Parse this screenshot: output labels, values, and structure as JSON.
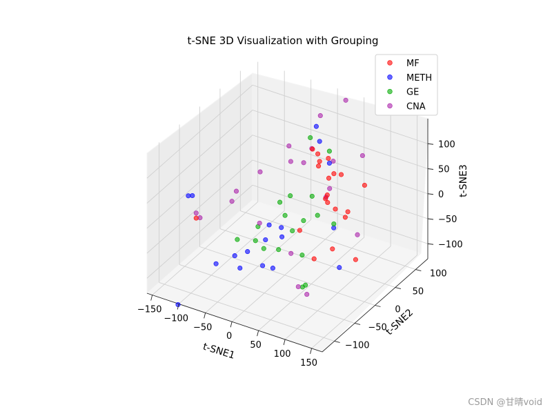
{
  "chart_data": {
    "type": "scatter",
    "projection": "3d",
    "title": "t-SNE 3D Visualization with Grouping",
    "xlabel": "t-SNE1",
    "ylabel": "t-SNE2",
    "zlabel": "t-SNE3",
    "xlim": [
      -160,
      170
    ],
    "ylim": [
      -130,
      130
    ],
    "zlim": [
      -130,
      150
    ],
    "x_ticks": [
      -150,
      -100,
      -50,
      0,
      50,
      100,
      150
    ],
    "y_ticks": [
      -100,
      -50,
      0,
      50,
      100
    ],
    "z_ticks": [
      -100,
      -50,
      0,
      50,
      100
    ],
    "grid": true,
    "legend_position": "top-right",
    "series": [
      {
        "name": "MF",
        "color": "#ff0000",
        "points": [
          [
            -34,
            126,
            10
          ],
          [
            -41,
            122,
            20
          ],
          [
            -5,
            114,
            20
          ],
          [
            -20,
            112,
            10
          ],
          [
            -22,
            112,
            0
          ],
          [
            7,
            112,
            -5
          ],
          [
            26,
            105,
            5
          ],
          [
            11,
            86,
            -35
          ],
          [
            50,
            90,
            -50
          ],
          [
            59,
            72,
            -45
          ],
          [
            44,
            60,
            -105
          ],
          [
            34,
            64,
            30
          ],
          [
            83,
            16,
            20
          ],
          [
            70,
            14,
            30
          ],
          [
            96,
            49,
            -100
          ],
          [
            69,
            -18,
            -60
          ],
          [
            -10,
            50,
            -80
          ],
          [
            -124,
            -56,
            -20
          ],
          [
            90,
            79,
            25
          ],
          [
            -4,
            110,
            -50
          ]
        ]
      },
      {
        "name": "METH",
        "color": "#0000ff",
        "points": [
          [
            -102,
            -94,
            60
          ],
          [
            -115,
            -87,
            50
          ],
          [
            -20,
            112,
            50
          ],
          [
            -40,
            130,
            60
          ],
          [
            0,
            110,
            15
          ],
          [
            -88,
            -54,
            -100
          ],
          [
            -75,
            -25,
            -100
          ],
          [
            -64,
            -8,
            -100
          ],
          [
            -32,
            35,
            -90
          ],
          [
            -50,
            18,
            -90
          ],
          [
            -37,
            10,
            -50
          ],
          [
            -24,
            23,
            -60
          ],
          [
            -100,
            -132,
            -130
          ],
          [
            -27,
            6,
            -130
          ],
          [
            -37,
            -6,
            -120
          ],
          [
            48,
            58,
            -60
          ],
          [
            86,
            22,
            -100
          ],
          [
            -72,
            -16,
            -130
          ]
        ]
      },
      {
        "name": "GE",
        "color": "#00aa00",
        "points": [
          [
            -23,
            93,
            70
          ],
          [
            -3,
            114,
            35
          ],
          [
            -30,
            40,
            -50
          ],
          [
            -30,
            53,
            -20
          ],
          [
            -42,
            43,
            -30
          ],
          [
            -15,
            87,
            -40
          ],
          [
            -58,
            -41,
            -50
          ],
          [
            -39,
            -21,
            -60
          ],
          [
            -42,
            -11,
            -40
          ],
          [
            -31,
            -11,
            -80
          ],
          [
            -17,
            7,
            -90
          ],
          [
            -4,
            24,
            -60
          ],
          [
            11,
            32,
            -40
          ],
          [
            22,
            52,
            -40
          ],
          [
            42,
            66,
            -60
          ],
          [
            16,
            22,
            -100
          ],
          [
            36,
            4,
            -140
          ],
          [
            35,
            -2,
            -140
          ]
        ]
      },
      {
        "name": "CNA",
        "color": "#aa22aa",
        "points": [
          [
            -20,
            114,
            100
          ],
          [
            14,
            132,
            130
          ],
          [
            -47,
            72,
            60
          ],
          [
            -72,
            -25,
            30
          ],
          [
            -78,
            -28,
            10
          ],
          [
            -124,
            -56,
            -10
          ],
          [
            -45,
            -3,
            -40
          ],
          [
            -54,
            10,
            50
          ],
          [
            -1,
            48,
            60
          ],
          [
            -4,
            72,
            70
          ],
          [
            37,
            71,
            60
          ],
          [
            80,
            87,
            75
          ],
          [
            44,
            44,
            10
          ],
          [
            91,
            60,
            -60
          ],
          [
            21,
            6,
            -150
          ],
          [
            60,
            -24,
            -130
          ],
          [
            -96,
            -83,
            10
          ],
          [
            28,
            74,
            0
          ],
          [
            -36,
            62,
            40
          ],
          [
            -25,
            48,
            -130
          ]
        ]
      }
    ]
  },
  "watermark": "CSDN @甘晴void"
}
